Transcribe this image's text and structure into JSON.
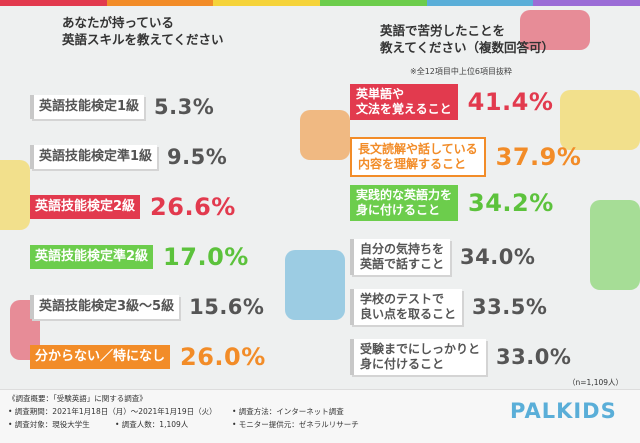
{
  "left": {
    "title_line1": "あなたが持っている",
    "title_line2": "英語スキルを教えてください",
    "items": [
      {
        "label": "英語技能検定1級",
        "value": "5.3%"
      },
      {
        "label": "英語技能検定準1級",
        "value": "9.5%"
      },
      {
        "label": "英語技能検定2級",
        "value": "26.6%"
      },
      {
        "label": "英語技能検定準2級",
        "value": "17.0%"
      },
      {
        "label": "英語技能検定3級〜5級",
        "value": "15.6%"
      },
      {
        "label": "分からない／特になし",
        "value": "26.0%"
      }
    ]
  },
  "right": {
    "title_line1": "英語で苦労したことを",
    "title_line2": "教えてください（複数回答可）",
    "note": "※全12項目中上位6項目抜粋",
    "items": [
      {
        "line1": "英単語や",
        "line2": "文法を覚えること",
        "value": "41.4%"
      },
      {
        "line1": "長文読解や話している",
        "line2": "内容を理解すること",
        "value": "37.9%"
      },
      {
        "line1": "実践的な英語力を",
        "line2": "身に付けること",
        "value": "34.2%"
      },
      {
        "line1": "自分の気持ちを",
        "line2": "英語で話すこと",
        "value": "34.0%"
      },
      {
        "line1": "学校のテストで",
        "line2": "良い点を取ること",
        "value": "33.5%"
      },
      {
        "line1": "受験までにしっかりと",
        "line2": "身に付けること",
        "value": "33.0%"
      }
    ],
    "sample": "（n=1,109人）"
  },
  "footer": {
    "heading": "《調査概要：「受験英語」に関する調査》",
    "period": "• 調査期間：2021年1月18日（月）〜2021年1月19日（火）",
    "method": "• 調査方法：インターネット調査",
    "target": "• 調査対象：現役大学生",
    "count": "• 調査人数：1,109人",
    "provider": "• モニター提供元：ゼネラルリサーチ",
    "brand": "PALKIDS"
  },
  "colors": {
    "red": "#e23a4e",
    "green": "#6ccd4c",
    "orange": "#f28c28",
    "gray": "#555555",
    "brand": "#5aaed8"
  }
}
